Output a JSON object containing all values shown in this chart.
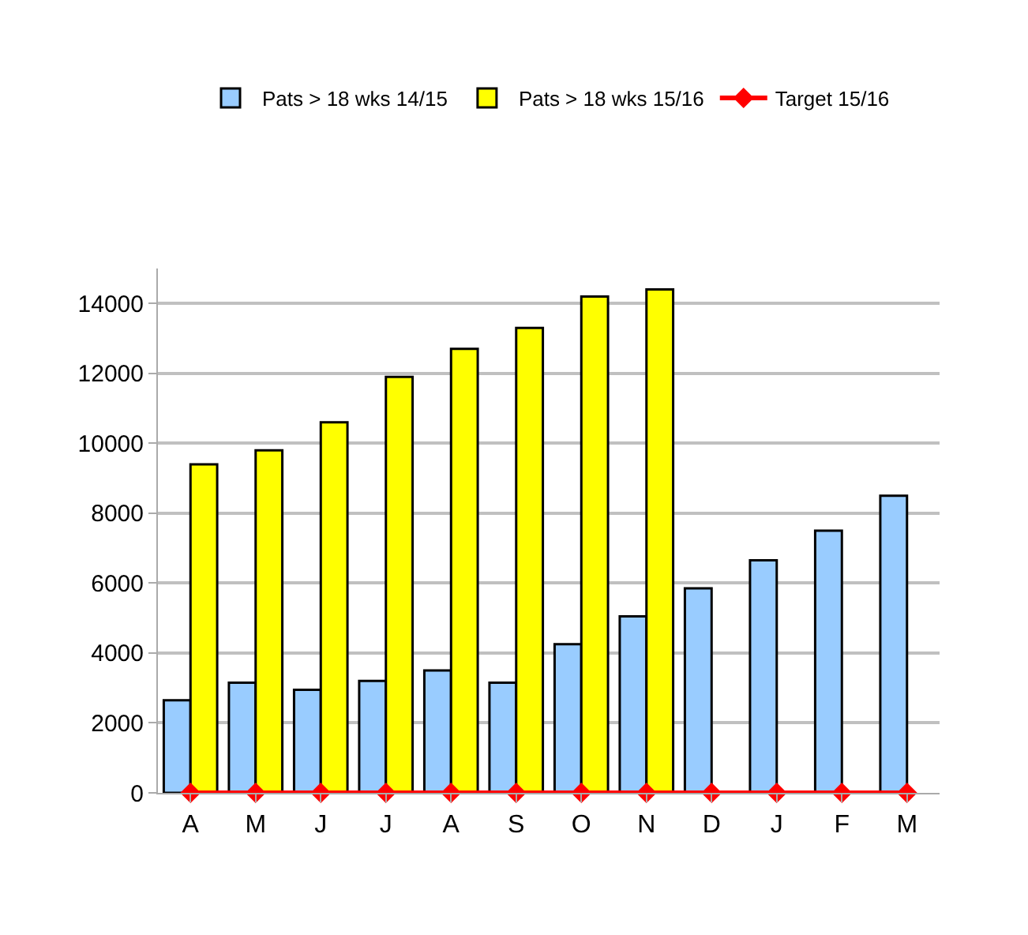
{
  "chart_data": {
    "type": "bar",
    "categories": [
      "A",
      "M",
      "J",
      "J",
      "A",
      "S",
      "O",
      "N",
      "D",
      "J",
      "F",
      "M"
    ],
    "series": [
      {
        "name": "Pats > 18 wks 14/15",
        "color": "#99ccff",
        "values": [
          2650,
          3150,
          2950,
          3200,
          3500,
          3150,
          4250,
          5050,
          5850,
          6650,
          7500,
          8500
        ]
      },
      {
        "name": "Pats > 18 wks 15/16",
        "color": "#ffff00",
        "values": [
          9400,
          9800,
          10600,
          11900,
          12700,
          13300,
          14200,
          14400,
          null,
          null,
          null,
          null
        ]
      },
      {
        "name": "Target 15/16",
        "color": "#ff0000",
        "type": "line",
        "marker": "diamond",
        "values": [
          0,
          0,
          0,
          0,
          0,
          0,
          0,
          0,
          0,
          0,
          0,
          0
        ]
      }
    ],
    "ylim": [
      0,
      15000
    ],
    "yticks": [
      0,
      2000,
      4000,
      6000,
      8000,
      10000,
      12000,
      14000
    ],
    "grid": "y",
    "legend": "top"
  }
}
